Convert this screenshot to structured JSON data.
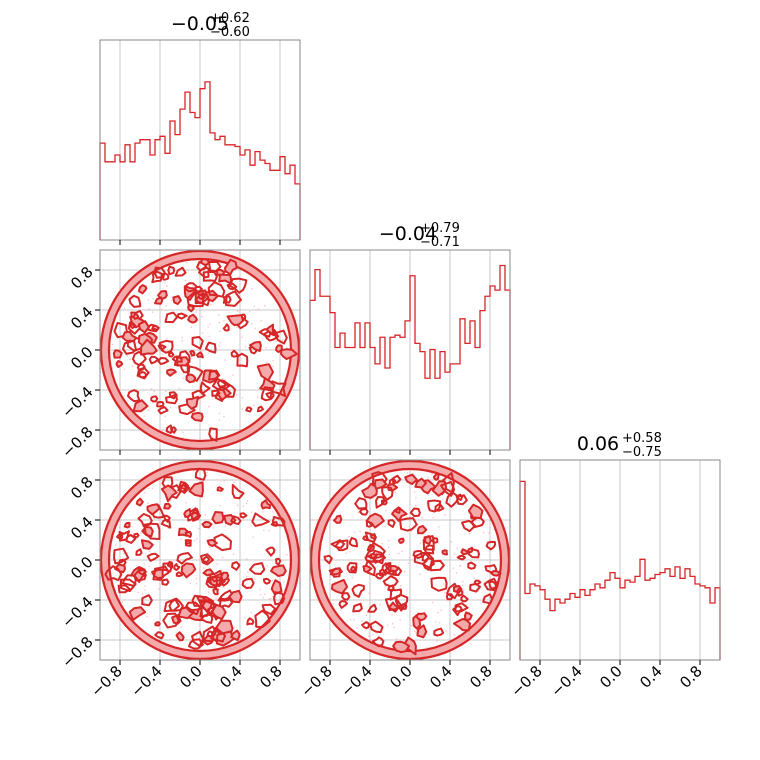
{
  "figure": {
    "type": "corner plot"
  },
  "colors": {
    "line": "#d62728",
    "fill": "#f4a9aa",
    "frame": "#888888",
    "grid": "#c8c8c8"
  },
  "chart_data": [
    {
      "type": "histogram",
      "panel": "diagonal-1",
      "title": {
        "median": "−0.05",
        "plus": "+0.62",
        "minus": "−0.60"
      },
      "x_range": [
        -1,
        1
      ],
      "bin_count": 40,
      "bin_heights": [
        0.57,
        0.46,
        0.46,
        0.5,
        0.46,
        0.56,
        0.46,
        0.57,
        0.59,
        0.59,
        0.5,
        0.59,
        0.61,
        0.51,
        0.7,
        0.62,
        0.77,
        0.87,
        0.75,
        0.72,
        0.89,
        0.93,
        0.63,
        0.59,
        0.61,
        0.56,
        0.56,
        0.55,
        0.5,
        0.53,
        0.44,
        0.52,
        0.47,
        0.45,
        0.41,
        0.41,
        0.49,
        0.39,
        0.44,
        0.33
      ],
      "x_ticks": [
        "−0.8",
        "−0.4",
        "0.0",
        "0.4",
        "0.8"
      ],
      "tick_labels_shown": false
    },
    {
      "type": "histogram",
      "panel": "diagonal-2",
      "title": {
        "median": "−0.04",
        "plus": "+0.79",
        "minus": "−0.71"
      },
      "x_range": [
        -1,
        1
      ],
      "bin_count": 40,
      "bin_heights": [
        0.73,
        0.88,
        0.75,
        0.75,
        0.67,
        0.5,
        0.57,
        0.5,
        0.5,
        0.62,
        0.5,
        0.62,
        0.5,
        0.42,
        0.55,
        0.4,
        0.55,
        0.56,
        0.55,
        0.63,
        0.85,
        0.52,
        0.48,
        0.35,
        0.49,
        0.35,
        0.48,
        0.38,
        0.42,
        0.42,
        0.64,
        0.52,
        0.63,
        0.5,
        0.68,
        0.75,
        0.8,
        0.78,
        0.9,
        0.78
      ],
      "x_ticks": [
        "−0.8",
        "−0.4",
        "0.0",
        "0.4",
        "0.8"
      ],
      "tick_labels_shown": false
    },
    {
      "type": "histogram",
      "panel": "diagonal-3",
      "title": {
        "median": "0.06",
        "plus": "+0.58",
        "minus": "−0.75"
      },
      "x_range": [
        -1,
        1
      ],
      "bin_count": 40,
      "bin_heights": [
        0.94,
        0.35,
        0.4,
        0.39,
        0.37,
        0.32,
        0.26,
        0.32,
        0.3,
        0.32,
        0.35,
        0.33,
        0.37,
        0.34,
        0.37,
        0.4,
        0.38,
        0.42,
        0.46,
        0.43,
        0.38,
        0.42,
        0.41,
        0.44,
        0.53,
        0.42,
        0.43,
        0.45,
        0.46,
        0.48,
        0.44,
        0.49,
        0.43,
        0.48,
        0.44,
        0.4,
        0.39,
        0.38,
        0.3,
        0.38
      ],
      "x_ticks": [
        "−0.8",
        "−0.4",
        "0.0",
        "0.4",
        "0.8"
      ],
      "tick_labels_shown": true
    },
    {
      "type": "contour",
      "panel": "row2-col1",
      "support": "unit disk",
      "x_range": [
        -1,
        1
      ],
      "y_range": [
        -1,
        1
      ],
      "y_ticks": [
        "0.8",
        "0.4",
        "0.0",
        "−0.4",
        "−0.8"
      ],
      "seed": 11
    },
    {
      "type": "contour",
      "panel": "row3-col1",
      "support": "unit disk",
      "x_range": [
        -1,
        1
      ],
      "y_range": [
        -1,
        1
      ],
      "y_ticks": [
        "0.8",
        "0.4",
        "0.0",
        "−0.4",
        "−0.8"
      ],
      "x_ticks": [
        "−0.8",
        "−0.4",
        "0.0",
        "0.4",
        "0.8"
      ],
      "seed": 23
    },
    {
      "type": "contour",
      "panel": "row3-col2",
      "support": "unit disk",
      "x_range": [
        -1,
        1
      ],
      "y_range": [
        -1,
        1
      ],
      "x_ticks": [
        "−0.8",
        "−0.4",
        "0.0",
        "0.4",
        "0.8"
      ],
      "seed": 37
    }
  ]
}
